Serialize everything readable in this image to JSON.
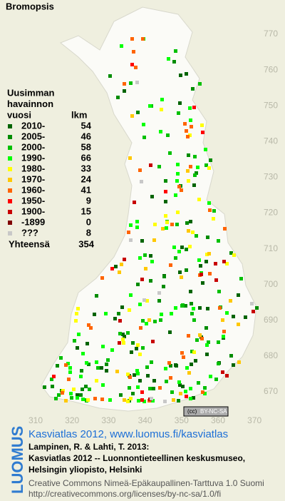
{
  "title": "Bromopsis",
  "legend": {
    "heading": [
      "Uusimman",
      "havainnon",
      "vuosi"
    ],
    "count_heading": "lkm",
    "rows": [
      {
        "label": "2010-",
        "count": 54,
        "color": "#006400"
      },
      {
        "label": "2005-",
        "count": 46,
        "color": "#008c00"
      },
      {
        "label": "2000-",
        "count": 58,
        "color": "#00c000"
      },
      {
        "label": "1990-",
        "count": 66,
        "color": "#00ff00"
      },
      {
        "label": "1980-",
        "count": 33,
        "color": "#ffff00"
      },
      {
        "label": "1970-",
        "count": 24,
        "color": "#ffc800"
      },
      {
        "label": "1960-",
        "count": 41,
        "color": "#ff6400"
      },
      {
        "label": "1950-",
        "count": 9,
        "color": "#ff0000"
      },
      {
        "label": "1900-",
        "count": 15,
        "color": "#c80000"
      },
      {
        "label": "-1899",
        "count": 0,
        "color": "#800000"
      },
      {
        "label": "???",
        "count": 8,
        "color": "#c8c8c8"
      }
    ],
    "total_label": "Yhteensä",
    "total": 354
  },
  "y_axis_labels": [
    770,
    760,
    750,
    740,
    730,
    720,
    710,
    700,
    690,
    680,
    670
  ],
  "x_axis_labels": [
    310,
    320,
    330,
    340,
    350,
    360,
    370
  ],
  "license_badge": "BY-NC-SA",
  "brand": "LUOMUS",
  "credit": {
    "link": "Kasviatlas 2012, www.luomus.fi/kasviatlas",
    "citation": [
      "Lampinen, R. & Lahti, T. 2013:",
      "Kasviatlas 2012 -- Luonnontieteellinen keskusmuseo,",
      "Helsingin yliopisto, Helsinki"
    ],
    "license": [
      "Creative Commons Nimeä-Epäkaupallinen-Tarttuva 1.0 Suomi",
      "http://creativecommons.org/licenses/by-nc-sa/1.0/fi"
    ]
  }
}
